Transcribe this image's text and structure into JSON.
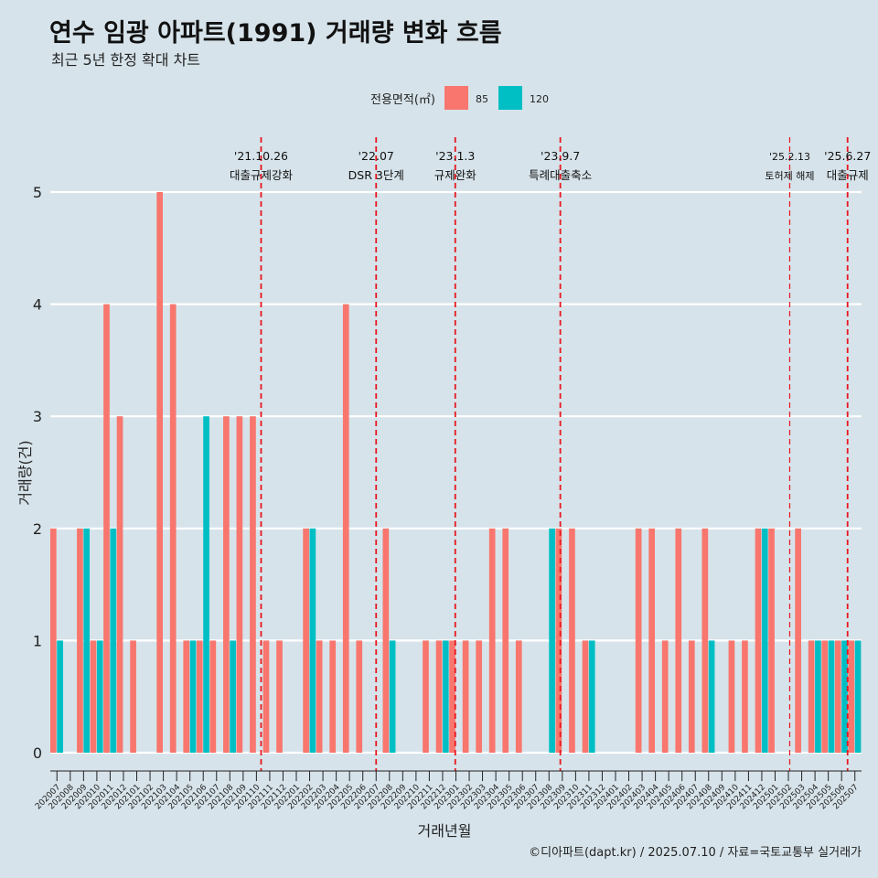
{
  "title": "연수 임광 아파트(1991) 거래량 변화 흐름",
  "subtitle": "최근 5년 한정 확대 차트",
  "caption": "©디아파트(dapt.kr) / 2025.07.10 / 자료=국토교통부 실거래가",
  "colors": {
    "background": "#d6e3ea",
    "s85": "#f8766d",
    "s120": "#00bfc4",
    "event": "#e8171f",
    "grid": "#ffffff"
  },
  "chart_data": {
    "type": "bar",
    "xlabel": "거래년월",
    "ylabel": "거래량(건)",
    "ylim": [
      0,
      5
    ],
    "yticks": [
      0,
      1,
      2,
      3,
      4,
      5
    ],
    "legend": {
      "title": "전용면적(㎡)",
      "position": "top"
    },
    "categories": [
      "202007",
      "202008",
      "202009",
      "202010",
      "202011",
      "202012",
      "202101",
      "202102",
      "202103",
      "202104",
      "202105",
      "202106",
      "202107",
      "202108",
      "202109",
      "202110",
      "202111",
      "202112",
      "202201",
      "202202",
      "202203",
      "202204",
      "202205",
      "202206",
      "202207",
      "202208",
      "202209",
      "202210",
      "202211",
      "202212",
      "202301",
      "202302",
      "202303",
      "202304",
      "202305",
      "202306",
      "202307",
      "202308",
      "202309",
      "202310",
      "202311",
      "202312",
      "202401",
      "202402",
      "202403",
      "202404",
      "202405",
      "202406",
      "202407",
      "202408",
      "202409",
      "202410",
      "202411",
      "202412",
      "202501",
      "202502",
      "202503",
      "202504",
      "202505",
      "202506",
      "202507"
    ],
    "series": [
      {
        "name": "85",
        "values": [
          2,
          0,
          2,
          1,
          4,
          3,
          1,
          0,
          5,
          4,
          1,
          1,
          1,
          3,
          3,
          3,
          1,
          1,
          0,
          2,
          1,
          1,
          4,
          1,
          0,
          2,
          0,
          0,
          1,
          1,
          1,
          1,
          1,
          2,
          2,
          1,
          0,
          0,
          2,
          2,
          1,
          0,
          0,
          0,
          2,
          2,
          1,
          2,
          1,
          2,
          0,
          1,
          1,
          2,
          2,
          0,
          2,
          1,
          1,
          1,
          1
        ]
      },
      {
        "name": "120",
        "values": [
          1,
          0,
          2,
          1,
          2,
          0,
          0,
          0,
          0,
          0,
          1,
          3,
          0,
          1,
          0,
          0,
          0,
          0,
          0,
          2,
          0,
          0,
          0,
          0,
          0,
          1,
          0,
          0,
          0,
          1,
          0,
          0,
          0,
          0,
          0,
          0,
          0,
          2,
          0,
          0,
          1,
          0,
          0,
          0,
          0,
          0,
          0,
          0,
          0,
          1,
          0,
          0,
          0,
          2,
          0,
          0,
          0,
          1,
          1,
          1,
          1
        ]
      }
    ],
    "events": [
      {
        "date": "'21.10.26",
        "label": "대출규제강화"
      },
      {
        "date": "'22.07",
        "label": "DSR 3단계"
      },
      {
        "date": "'23.1.3",
        "label": "규제완화"
      },
      {
        "date": "'23.9.7",
        "label": "특례대출축소"
      },
      {
        "date": "'25.2.13",
        "label": "토허제 해제"
      },
      {
        "date": "'25.6.27",
        "label": "대출규제"
      }
    ]
  }
}
